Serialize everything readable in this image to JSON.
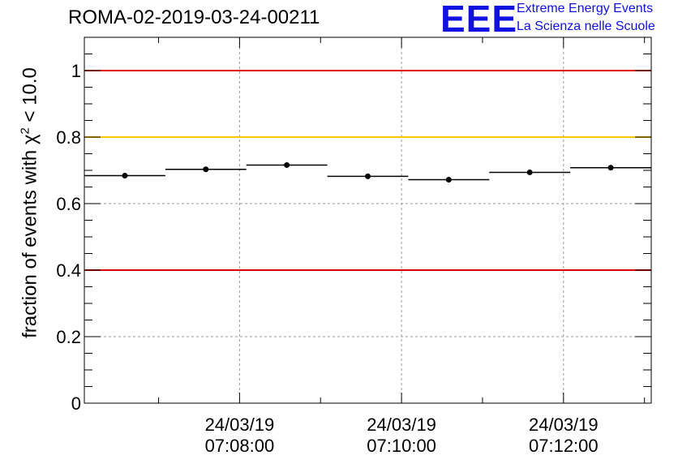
{
  "header": {
    "run_title": "ROMA-02-2019-03-24-00211",
    "logo_text": "EEE",
    "logo_line1": "Extreme Energy Events",
    "logo_line2": "La Scienza nelle Scuole",
    "brand_color": "#1010e0"
  },
  "y_axis": {
    "label_prefix": "fraction of events with χ",
    "label_exp": "2",
    "label_suffix": " < 10.0"
  },
  "chart_data": {
    "type": "scatter",
    "title": "ROMA-02-2019-03-24-00211",
    "ylabel": "fraction of events with χ² < 10.0",
    "xlabel": "",
    "ylim": [
      0,
      1.1
    ],
    "y_ticks": [
      0,
      0.2,
      0.4,
      0.6,
      0.8,
      1
    ],
    "y_tick_labels": [
      "0",
      "0.2",
      "0.4",
      "0.6",
      "0.8",
      "1"
    ],
    "x_tick_labels": [
      {
        "date": "24/03/19",
        "time": "07:08:00"
      },
      {
        "date": "24/03/19",
        "time": "07:10:00"
      },
      {
        "date": "24/03/19",
        "time": "07:12:00"
      }
    ],
    "xlim": [
      "07:06:05",
      "07:13:05"
    ],
    "points": [
      {
        "x": "07:06:35",
        "x_start": "07:06:05",
        "x_end": "07:07:05",
        "y": 0.684,
        "yerr": 0.007
      },
      {
        "x": "07:07:35",
        "x_start": "07:07:05",
        "x_end": "07:08:05",
        "y": 0.703,
        "yerr": 0.007
      },
      {
        "x": "07:08:35",
        "x_start": "07:08:05",
        "x_end": "07:09:05",
        "y": 0.716,
        "yerr": 0.007
      },
      {
        "x": "07:09:35",
        "x_start": "07:09:05",
        "x_end": "07:10:05",
        "y": 0.682,
        "yerr": 0.007
      },
      {
        "x": "07:10:35",
        "x_start": "07:10:05",
        "x_end": "07:11:05",
        "y": 0.672,
        "yerr": 0.007
      },
      {
        "x": "07:11:35",
        "x_start": "07:11:05",
        "x_end": "07:12:05",
        "y": 0.694,
        "yerr": 0.007
      },
      {
        "x": "07:12:35",
        "x_start": "07:12:05",
        "x_end": "07:13:05",
        "y": 0.708,
        "yerr": 0.007
      }
    ],
    "reference_lines": [
      {
        "y": 1.0,
        "color": "#e00000"
      },
      {
        "y": 0.8,
        "color": "#ffc800"
      },
      {
        "y": 0.4,
        "color": "#e00000"
      }
    ],
    "grid": true,
    "marker_color": "#000000"
  }
}
